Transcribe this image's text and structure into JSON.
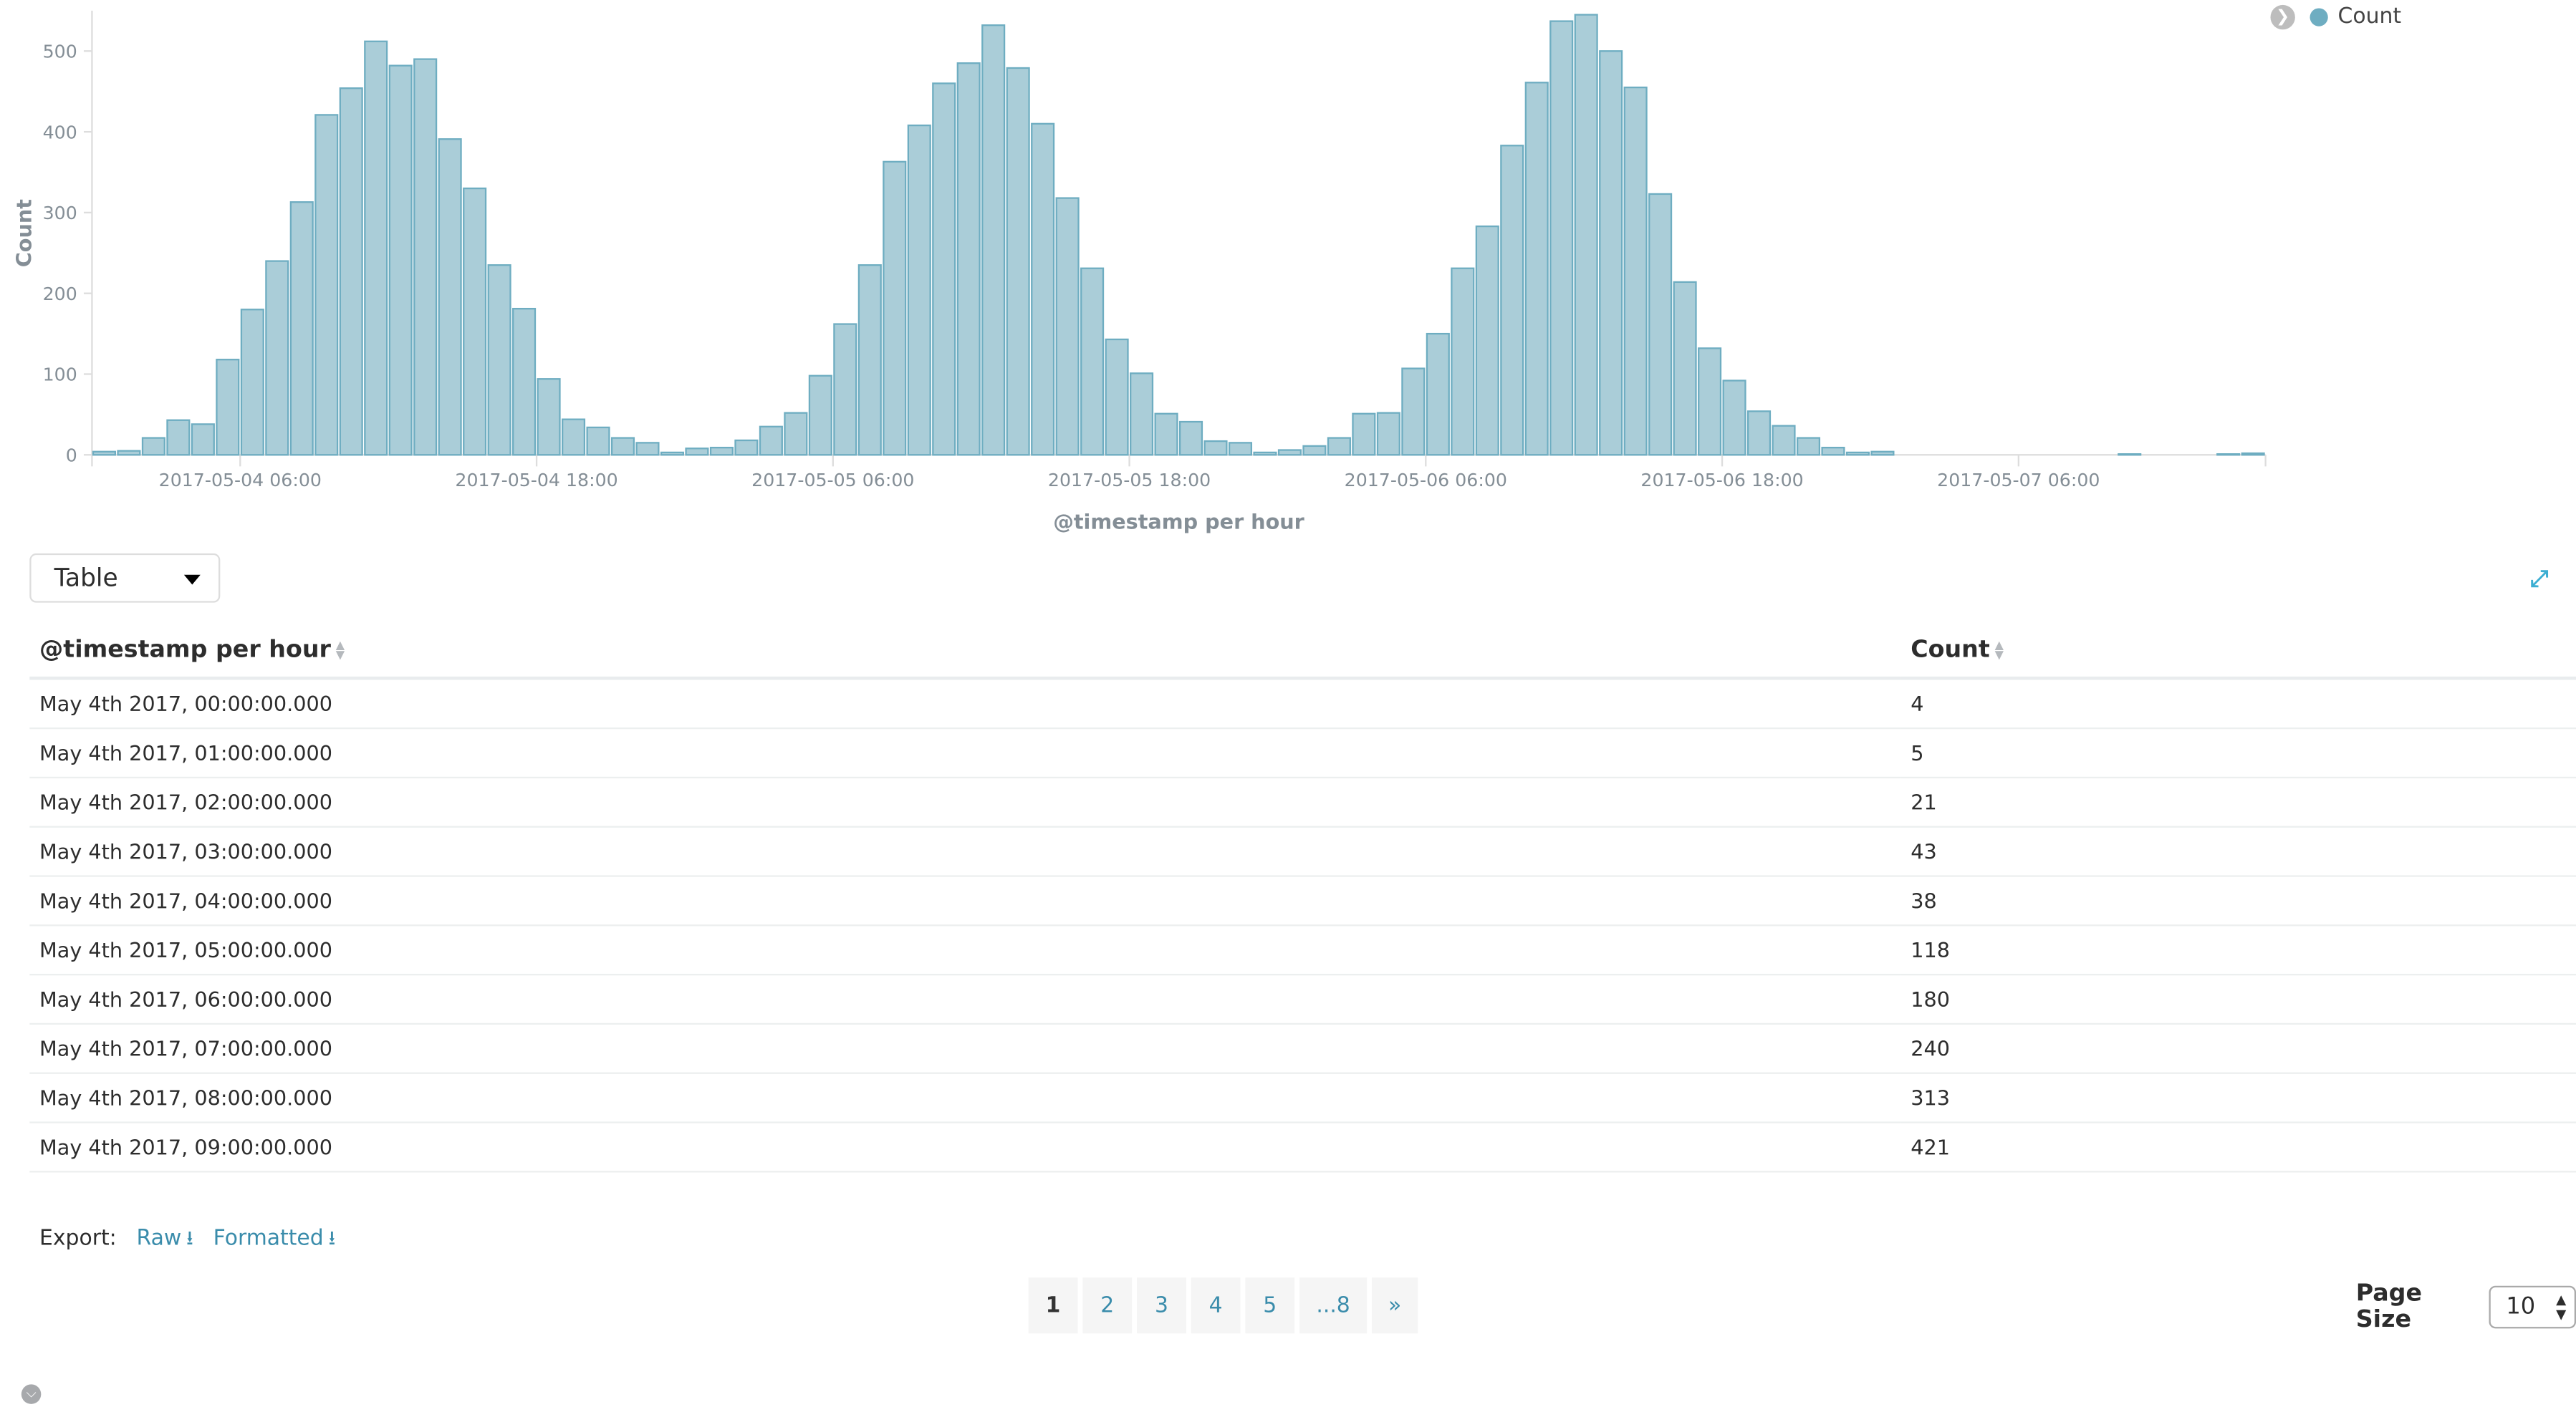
{
  "chart_data": {
    "type": "bar",
    "title": "",
    "xlabel": "@timestamp per hour",
    "ylabel": "Count",
    "ylim": [
      0,
      550
    ],
    "yticks": [
      0,
      100,
      200,
      300,
      400,
      500
    ],
    "xrange": [
      "2017-05-04 00:00",
      "2017-05-07 16:00"
    ],
    "xtick_labels": [
      "2017-05-04 06:00",
      "2017-05-04 18:00",
      "2017-05-05 06:00",
      "2017-05-05 18:00",
      "2017-05-06 06:00",
      "2017-05-06 18:00",
      "2017-05-07 06:00"
    ],
    "grid": false,
    "legend": {
      "position": "top-right",
      "entries": [
        "Count"
      ]
    },
    "colors": {
      "bar_fill": "#aacdd8",
      "bar_stroke": "#6eadc1"
    },
    "x": [
      "2017-05-04 00:00",
      "2017-05-04 01:00",
      "2017-05-04 02:00",
      "2017-05-04 03:00",
      "2017-05-04 04:00",
      "2017-05-04 05:00",
      "2017-05-04 06:00",
      "2017-05-04 07:00",
      "2017-05-04 08:00",
      "2017-05-04 09:00",
      "2017-05-04 10:00",
      "2017-05-04 11:00",
      "2017-05-04 12:00",
      "2017-05-04 13:00",
      "2017-05-04 14:00",
      "2017-05-04 15:00",
      "2017-05-04 16:00",
      "2017-05-04 17:00",
      "2017-05-04 18:00",
      "2017-05-04 19:00",
      "2017-05-04 20:00",
      "2017-05-04 21:00",
      "2017-05-04 22:00",
      "2017-05-04 23:00",
      "2017-05-05 00:00",
      "2017-05-05 01:00",
      "2017-05-05 02:00",
      "2017-05-05 03:00",
      "2017-05-05 04:00",
      "2017-05-05 05:00",
      "2017-05-05 06:00",
      "2017-05-05 07:00",
      "2017-05-05 08:00",
      "2017-05-05 09:00",
      "2017-05-05 10:00",
      "2017-05-05 11:00",
      "2017-05-05 12:00",
      "2017-05-05 13:00",
      "2017-05-05 14:00",
      "2017-05-05 15:00",
      "2017-05-05 16:00",
      "2017-05-05 17:00",
      "2017-05-05 18:00",
      "2017-05-05 19:00",
      "2017-05-05 20:00",
      "2017-05-05 21:00",
      "2017-05-05 22:00",
      "2017-05-05 23:00",
      "2017-05-06 00:00",
      "2017-05-06 01:00",
      "2017-05-06 02:00",
      "2017-05-06 03:00",
      "2017-05-06 04:00",
      "2017-05-06 05:00",
      "2017-05-06 06:00",
      "2017-05-06 07:00",
      "2017-05-06 08:00",
      "2017-05-06 09:00",
      "2017-05-06 10:00",
      "2017-05-06 11:00",
      "2017-05-06 12:00",
      "2017-05-06 13:00",
      "2017-05-06 14:00",
      "2017-05-06 15:00",
      "2017-05-06 16:00",
      "2017-05-06 17:00",
      "2017-05-06 18:00",
      "2017-05-06 19:00",
      "2017-05-06 20:00",
      "2017-05-06 21:00",
      "2017-05-06 22:00",
      "2017-05-06 23:00",
      "2017-05-07 00:00",
      "2017-05-07 01:00",
      "2017-05-07 02:00",
      "2017-05-07 03:00",
      "2017-05-07 04:00",
      "2017-05-07 05:00",
      "2017-05-07 06:00",
      "2017-05-07 07:00",
      "2017-05-07 08:00",
      "2017-05-07 09:00",
      "2017-05-07 10:00",
      "2017-05-07 11:00",
      "2017-05-07 12:00",
      "2017-05-07 13:00",
      "2017-05-07 14:00",
      "2017-05-07 15:00"
    ],
    "series": [
      {
        "name": "Count",
        "values": [
          4,
          5,
          21,
          43,
          38,
          118,
          180,
          240,
          313,
          421,
          454,
          512,
          482,
          490,
          391,
          330,
          235,
          181,
          94,
          44,
          34,
          21,
          15,
          3,
          8,
          9,
          18,
          35,
          52,
          98,
          162,
          235,
          363,
          408,
          460,
          485,
          532,
          479,
          410,
          318,
          231,
          143,
          101,
          51,
          41,
          17,
          15,
          3,
          6,
          11,
          21,
          51,
          52,
          107,
          150,
          231,
          283,
          383,
          461,
          537,
          545,
          500,
          455,
          323,
          214,
          132,
          92,
          54,
          36,
          21,
          9,
          3,
          4,
          0,
          0,
          0,
          0,
          0,
          0,
          0,
          0,
          0,
          1,
          0,
          0,
          0,
          1,
          2
        ]
      }
    ]
  },
  "legend": {
    "label": "Count",
    "toggle_icon": "chevron-right-icon",
    "dot_color": "#6eadc1"
  },
  "view_select": {
    "value": "Table"
  },
  "expand_icon": "expand-icon",
  "table": {
    "columns": [
      "@timestamp per hour",
      "Count"
    ],
    "rows": [
      [
        "May 4th 2017, 00:00:00.000",
        "4"
      ],
      [
        "May 4th 2017, 01:00:00.000",
        "5"
      ],
      [
        "May 4th 2017, 02:00:00.000",
        "21"
      ],
      [
        "May 4th 2017, 03:00:00.000",
        "43"
      ],
      [
        "May 4th 2017, 04:00:00.000",
        "38"
      ],
      [
        "May 4th 2017, 05:00:00.000",
        "118"
      ],
      [
        "May 4th 2017, 06:00:00.000",
        "180"
      ],
      [
        "May 4th 2017, 07:00:00.000",
        "240"
      ],
      [
        "May 4th 2017, 08:00:00.000",
        "313"
      ],
      [
        "May 4th 2017, 09:00:00.000",
        "421"
      ]
    ]
  },
  "export": {
    "label": "Export:",
    "raw": "Raw",
    "formatted": "Formatted"
  },
  "pagination": {
    "pages": [
      "1",
      "2",
      "3",
      "4",
      "5",
      "...8"
    ],
    "next": "»",
    "active": "1"
  },
  "page_size": {
    "label": "Page Size",
    "value": "10"
  },
  "colors": {
    "accent": "#3a8cab",
    "expand": "#3caed2"
  }
}
